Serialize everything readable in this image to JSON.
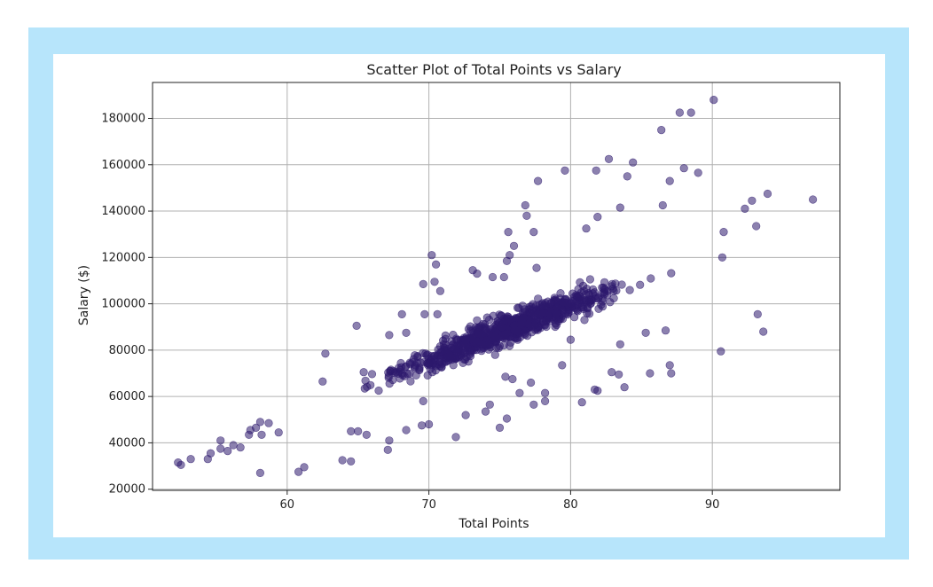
{
  "chart_data": {
    "type": "scatter",
    "title": "Scatter Plot of Total Points vs Salary",
    "xlabel": "Total Points",
    "ylabel": "Salary ($)",
    "xlim": [
      50.5,
      99
    ],
    "ylim": [
      19500,
      195500
    ],
    "xticks": [
      60,
      70,
      80,
      90
    ],
    "yticks": [
      20000,
      40000,
      60000,
      80000,
      100000,
      120000,
      140000,
      160000,
      180000
    ],
    "grid": true,
    "marker_color": "#2e1a6e",
    "marker_opacity": 0.55,
    "trend": {
      "slope": 2450,
      "intercept": -96000,
      "note_points_estimated": true
    },
    "outliers": [
      {
        "x": 90.1,
        "y": 188000
      },
      {
        "x": 87.7,
        "y": 182500
      },
      {
        "x": 88.5,
        "y": 182500
      },
      {
        "x": 86.4,
        "y": 175000
      },
      {
        "x": 82.7,
        "y": 162500
      },
      {
        "x": 84.4,
        "y": 161000
      },
      {
        "x": 88.0,
        "y": 158500
      },
      {
        "x": 79.6,
        "y": 157500
      },
      {
        "x": 81.8,
        "y": 157500
      },
      {
        "x": 89.0,
        "y": 156500
      },
      {
        "x": 84.0,
        "y": 155000
      },
      {
        "x": 87.0,
        "y": 153000
      },
      {
        "x": 77.7,
        "y": 153000
      },
      {
        "x": 75.6,
        "y": 131000
      },
      {
        "x": 77.4,
        "y": 131000
      },
      {
        "x": 81.1,
        "y": 132500
      },
      {
        "x": 76.8,
        "y": 142500
      },
      {
        "x": 83.5,
        "y": 141500
      },
      {
        "x": 86.5,
        "y": 142500
      },
      {
        "x": 76.9,
        "y": 138000
      },
      {
        "x": 81.9,
        "y": 137500
      },
      {
        "x": 76.0,
        "y": 125000
      },
      {
        "x": 70.2,
        "y": 121000
      },
      {
        "x": 70.5,
        "y": 117000
      },
      {
        "x": 69.6,
        "y": 108500
      },
      {
        "x": 70.4,
        "y": 109500
      },
      {
        "x": 70.8,
        "y": 105500
      },
      {
        "x": 73.1,
        "y": 114500
      },
      {
        "x": 73.4,
        "y": 113000
      },
      {
        "x": 74.5,
        "y": 111500
      },
      {
        "x": 75.3,
        "y": 111500
      },
      {
        "x": 75.7,
        "y": 121000
      },
      {
        "x": 75.5,
        "y": 118500
      },
      {
        "x": 77.6,
        "y": 115500
      },
      {
        "x": 68.1,
        "y": 95500
      },
      {
        "x": 69.7,
        "y": 95500
      },
      {
        "x": 70.6,
        "y": 95500
      },
      {
        "x": 67.2,
        "y": 86500
      },
      {
        "x": 68.4,
        "y": 87500
      },
      {
        "x": 64.9,
        "y": 90500
      },
      {
        "x": 62.7,
        "y": 78500
      },
      {
        "x": 65.4,
        "y": 70500
      },
      {
        "x": 62.5,
        "y": 66500
      },
      {
        "x": 69.6,
        "y": 58000
      },
      {
        "x": 72.6,
        "y": 52000
      },
      {
        "x": 71.9,
        "y": 42500
      },
      {
        "x": 75.0,
        "y": 46500
      },
      {
        "x": 75.5,
        "y": 50500
      },
      {
        "x": 74.0,
        "y": 53500
      },
      {
        "x": 74.3,
        "y": 56500
      },
      {
        "x": 75.4,
        "y": 68500
      },
      {
        "x": 75.9,
        "y": 67500
      },
      {
        "x": 77.2,
        "y": 66000
      },
      {
        "x": 76.4,
        "y": 61500
      },
      {
        "x": 77.4,
        "y": 56500
      },
      {
        "x": 78.2,
        "y": 58000
      },
      {
        "x": 78.2,
        "y": 61500
      },
      {
        "x": 80.8,
        "y": 57500
      },
      {
        "x": 81.7,
        "y": 63000
      },
      {
        "x": 81.9,
        "y": 62500
      },
      {
        "x": 79.4,
        "y": 73500
      },
      {
        "x": 80.0,
        "y": 84500
      },
      {
        "x": 82.9,
        "y": 70500
      },
      {
        "x": 83.4,
        "y": 69500
      },
      {
        "x": 83.8,
        "y": 64000
      },
      {
        "x": 83.5,
        "y": 82500
      },
      {
        "x": 85.3,
        "y": 87500
      },
      {
        "x": 85.6,
        "y": 70000
      },
      {
        "x": 86.7,
        "y": 88500
      },
      {
        "x": 87.0,
        "y": 73500
      },
      {
        "x": 87.1,
        "y": 70000
      },
      {
        "x": 90.6,
        "y": 79500
      },
      {
        "x": 93.2,
        "y": 95500
      },
      {
        "x": 93.6,
        "y": 88000
      },
      {
        "x": 90.7,
        "y": 120000
      },
      {
        "x": 97.1,
        "y": 145000
      },
      {
        "x": 93.9,
        "y": 147500
      },
      {
        "x": 92.8,
        "y": 144500
      },
      {
        "x": 92.3,
        "y": 141000
      },
      {
        "x": 93.1,
        "y": 133500
      },
      {
        "x": 90.8,
        "y": 131000
      },
      {
        "x": 58.1,
        "y": 27000
      },
      {
        "x": 60.8,
        "y": 27500
      },
      {
        "x": 61.2,
        "y": 29500
      },
      {
        "x": 63.9,
        "y": 32500
      },
      {
        "x": 64.5,
        "y": 32000
      },
      {
        "x": 64.5,
        "y": 45000
      },
      {
        "x": 65.0,
        "y": 45000
      },
      {
        "x": 65.6,
        "y": 43500
      },
      {
        "x": 67.1,
        "y": 37000
      },
      {
        "x": 67.2,
        "y": 41000
      },
      {
        "x": 68.4,
        "y": 45500
      },
      {
        "x": 69.5,
        "y": 47500
      },
      {
        "x": 70.0,
        "y": 48000
      },
      {
        "x": 52.3,
        "y": 31500
      },
      {
        "x": 52.5,
        "y": 30500
      },
      {
        "x": 53.2,
        "y": 33000
      },
      {
        "x": 54.4,
        "y": 33000
      },
      {
        "x": 54.6,
        "y": 35500
      },
      {
        "x": 55.3,
        "y": 41000
      },
      {
        "x": 55.3,
        "y": 37500
      },
      {
        "x": 55.8,
        "y": 36500
      },
      {
        "x": 56.2,
        "y": 39000
      },
      {
        "x": 56.7,
        "y": 38000
      },
      {
        "x": 57.3,
        "y": 43500
      },
      {
        "x": 57.4,
        "y": 45500
      },
      {
        "x": 57.8,
        "y": 46500
      },
      {
        "x": 58.1,
        "y": 49000
      },
      {
        "x": 58.2,
        "y": 43500
      },
      {
        "x": 58.7,
        "y": 48500
      },
      {
        "x": 59.4,
        "y": 44500
      }
    ]
  }
}
